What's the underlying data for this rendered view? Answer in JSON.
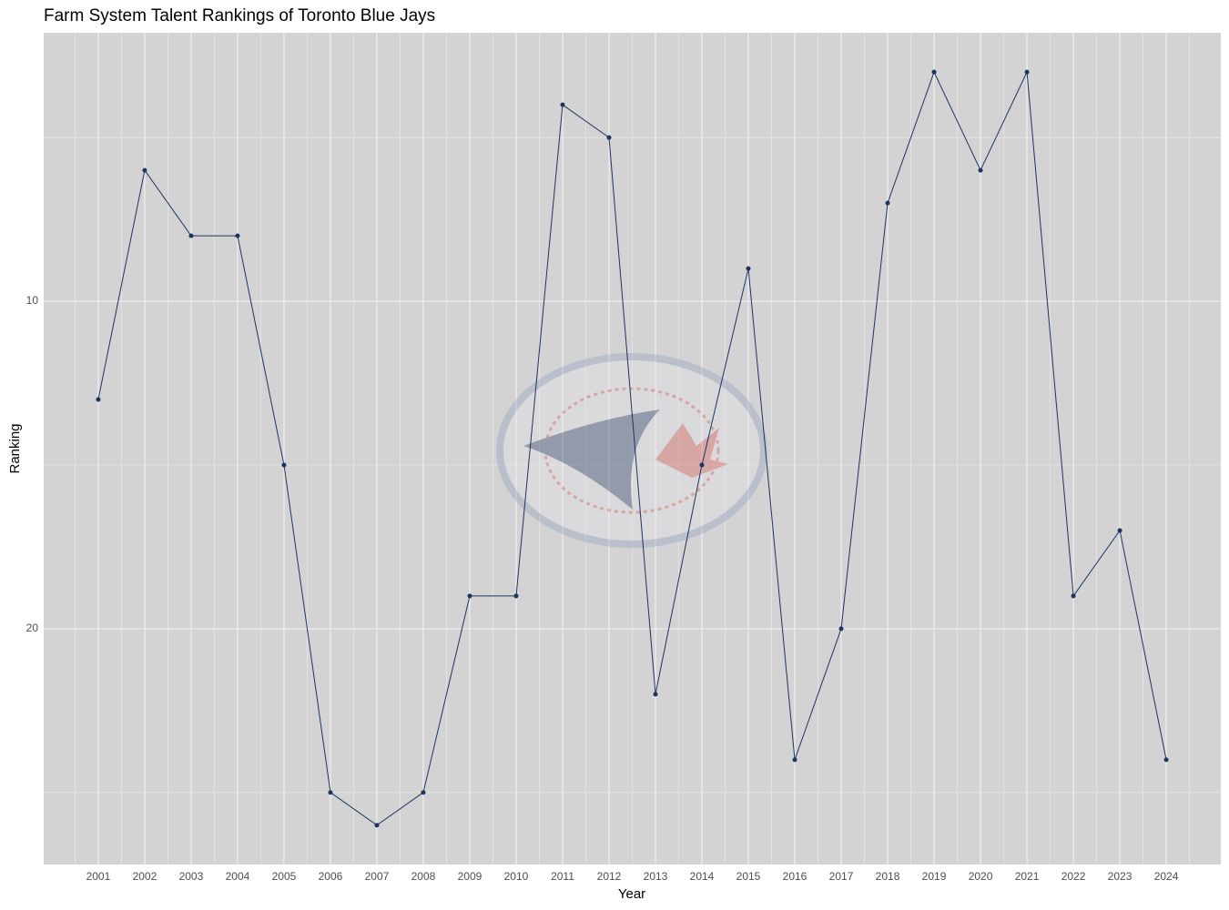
{
  "chart_data": {
    "type": "line",
    "title": "Farm System Talent Rankings of Toronto Blue Jays",
    "x_label": "Year",
    "y_label": "Ranking",
    "categories": [
      "2001",
      "2002",
      "2003",
      "2004",
      "2005",
      "2006",
      "2007",
      "2008",
      "2009",
      "2010",
      "2011",
      "2012",
      "2013",
      "2014",
      "2015",
      "2016",
      "2017",
      "2018",
      "2019",
      "2020",
      "2021",
      "2022",
      "2023",
      "2024"
    ],
    "series": [
      {
        "name": "Ranking",
        "color": "#1d3461",
        "values": [
          13,
          6,
          8,
          8,
          15,
          25,
          26,
          25,
          19,
          19,
          4,
          5,
          22,
          15,
          9,
          24,
          20,
          7,
          3,
          6,
          3,
          19,
          17,
          24
        ]
      }
    ],
    "ylim": [
      1.8,
      27.2
    ],
    "y_reversed": true,
    "yticks": [
      10,
      20
    ],
    "minor_yticks": [
      5,
      15,
      25
    ],
    "grid": true
  }
}
